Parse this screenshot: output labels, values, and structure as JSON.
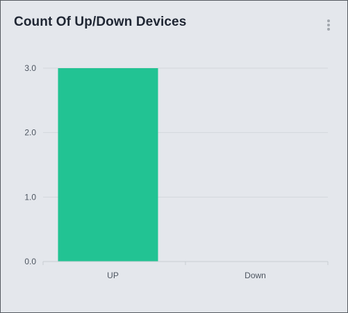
{
  "header": {
    "title": "Count Of Up/Down Devices",
    "menu_icon": "more-vertical-icon"
  },
  "chart_data": {
    "type": "bar",
    "categories": [
      "UP",
      "Down"
    ],
    "values": [
      3,
      0
    ],
    "title": "",
    "xlabel": "",
    "ylabel": "",
    "ylim": [
      0,
      3
    ],
    "yticks": [
      "0.0",
      "1.0",
      "2.0",
      "3.0"
    ],
    "grid": true,
    "legend": "none",
    "bar_color": "#22c393",
    "grid_color": "#d3d7dd",
    "axis_color": "#c8ccd2"
  }
}
